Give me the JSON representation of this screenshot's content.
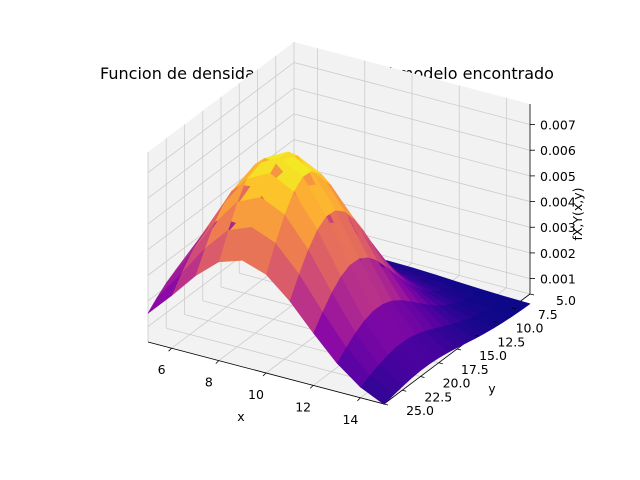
{
  "chart_data": {
    "type": "surface3d",
    "title": "Funcion de densidad conjunta con el modelo encontrado",
    "xlabel": "x",
    "ylabel": "y",
    "zlabel": "fX,Y(x,y)",
    "xlim": [
      5,
      15
    ],
    "ylim": [
      5,
      25
    ],
    "zlim": [
      0.0004,
      0.0078
    ],
    "x_ticks": [
      "6",
      "8",
      "10",
      "12",
      "14"
    ],
    "y_ticks": [
      "5.0",
      "7.5",
      "10.0",
      "12.5",
      "15.0",
      "17.5",
      "20.0",
      "22.5",
      "25.0"
    ],
    "z_ticks": [
      "0.001",
      "0.002",
      "0.003",
      "0.004",
      "0.005",
      "0.006",
      "0.007"
    ],
    "colormap": "plasma",
    "model": {
      "distribution": "bivariate normal",
      "mean_x": 9,
      "mean_y": 19.5,
      "std_x": 2.7,
      "std_y": 5.5,
      "peak_density": 0.0075,
      "grid_x": [
        5,
        6,
        7,
        8,
        9,
        10,
        11,
        12,
        13,
        14,
        15
      ],
      "grid_y": [
        5,
        6.25,
        7.5,
        8.75,
        10,
        11.25,
        12.5,
        13.75,
        15,
        16.25,
        17.5,
        18.75,
        20,
        21.25,
        22.5,
        23.75,
        25
      ]
    },
    "grid": true,
    "pane_color": "#f2f2f2",
    "grid_color": "#cccccc"
  }
}
